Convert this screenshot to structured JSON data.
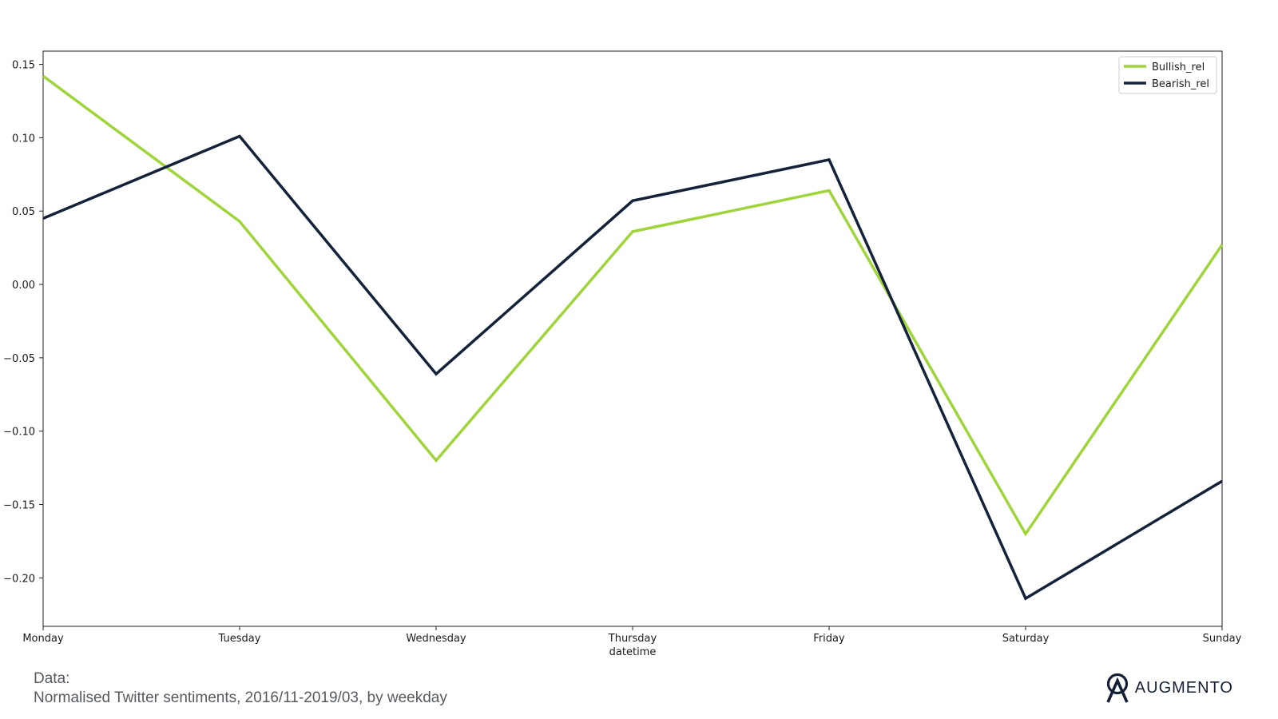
{
  "chart_data": {
    "type": "line",
    "categories": [
      "Monday",
      "Tuesday",
      "Wednesday",
      "Thursday",
      "Friday",
      "Saturday",
      "Sunday"
    ],
    "series": [
      {
        "name": "Bullish_rel",
        "color": "#9fd43a",
        "values": [
          0.142,
          0.043,
          -0.12,
          0.036,
          0.064,
          -0.17,
          0.027
        ]
      },
      {
        "name": "Bearish_rel",
        "color": "#15233a",
        "values": [
          0.045,
          0.101,
          -0.061,
          0.057,
          0.085,
          -0.214,
          -0.134
        ]
      }
    ],
    "xlabel": "datetime",
    "ylabel": "",
    "title": "",
    "ylim": [
      -0.233,
      0.159
    ],
    "yticks": [
      0.15,
      0.1,
      0.05,
      0.0,
      -0.05,
      -0.1,
      -0.15,
      -0.2
    ],
    "ytick_labels": [
      "0.15",
      "0.10",
      "0.05",
      "0.00",
      "−0.05",
      "−0.10",
      "−0.15",
      "−0.20"
    ],
    "grid": false,
    "legend": "top-right"
  },
  "caption": {
    "line1": "Data:",
    "line2": "Normalised Twitter sentiments, 2016/11-2019/03, by weekday"
  },
  "brand": {
    "name": "AUGMENTO",
    "icon": "augmento-logo-icon",
    "color": "#141f33"
  }
}
